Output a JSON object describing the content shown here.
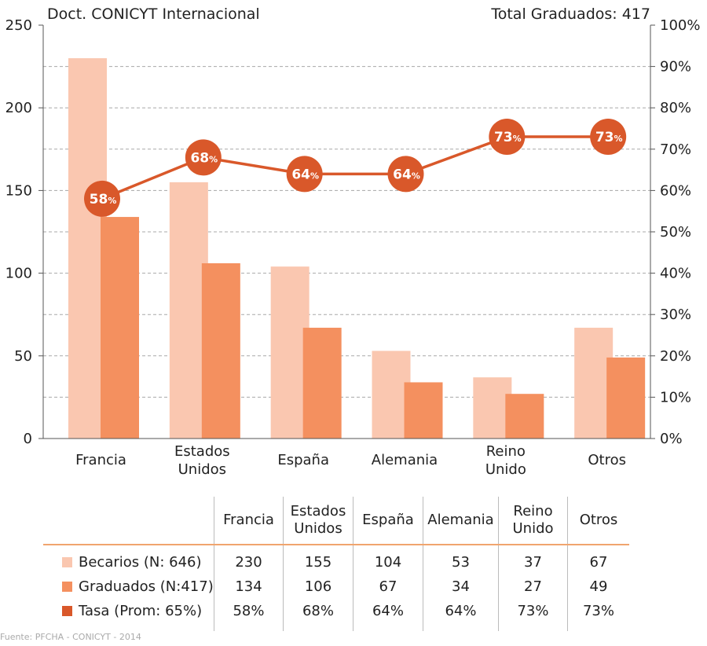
{
  "chart_data": {
    "type": "bar",
    "title": "Doct. CONICYT Internacional",
    "subtitle": "Total Graduados: 417",
    "categories": [
      [
        "Francia"
      ],
      [
        "Estados",
        "Unidos"
      ],
      [
        "España"
      ],
      [
        "Alemania"
      ],
      [
        "Reino",
        "Unido"
      ],
      [
        "Otros"
      ]
    ],
    "series": [
      {
        "name": "Becarios (N: 646)",
        "values": [
          230,
          155,
          104,
          53,
          37,
          67
        ],
        "color": "#fac7b0",
        "axis": "left"
      },
      {
        "name": "Graduados (N:417)",
        "values": [
          134,
          106,
          67,
          34,
          27,
          49
        ],
        "color": "#f4905f",
        "axis": "left"
      },
      {
        "name": "Tasa (Prom: 65%)",
        "type": "line",
        "values": [
          58,
          68,
          64,
          64,
          73,
          73
        ],
        "color": "#d9582a",
        "axis": "right"
      }
    ],
    "y_left": {
      "min": 0,
      "max": 250,
      "ticks": [
        0,
        50,
        100,
        150,
        200,
        250
      ]
    },
    "y_right": {
      "min": 0,
      "max": 100,
      "ticks": [
        "0%",
        "10%",
        "20%",
        "30%",
        "40%",
        "50%",
        "60%",
        "70%",
        "80%",
        "90%",
        "100%"
      ]
    },
    "grid": "dashed horizontal"
  },
  "table": {
    "headers": [
      [
        "Francia"
      ],
      [
        "Estados",
        "Unidos"
      ],
      [
        "España"
      ],
      [
        "Alemania"
      ],
      [
        "Reino",
        "Unido"
      ],
      [
        "Otros"
      ]
    ],
    "rows": [
      {
        "label": "Becarios (N: 646)",
        "color": "#fac7b0",
        "cells": [
          "230",
          "155",
          "104",
          "53",
          "37",
          "67"
        ]
      },
      {
        "label": "Graduados (N:417)",
        "color": "#f4905f",
        "cells": [
          "134",
          "106",
          "67",
          "34",
          "27",
          "49"
        ]
      },
      {
        "label": "Tasa (Prom: 65%)",
        "color": "#d9582a",
        "cells": [
          "58%",
          "68%",
          "64%",
          "64%",
          "73%",
          "73%"
        ]
      }
    ]
  },
  "source": "Fuente: PFCHA - CONICYT - 2014"
}
